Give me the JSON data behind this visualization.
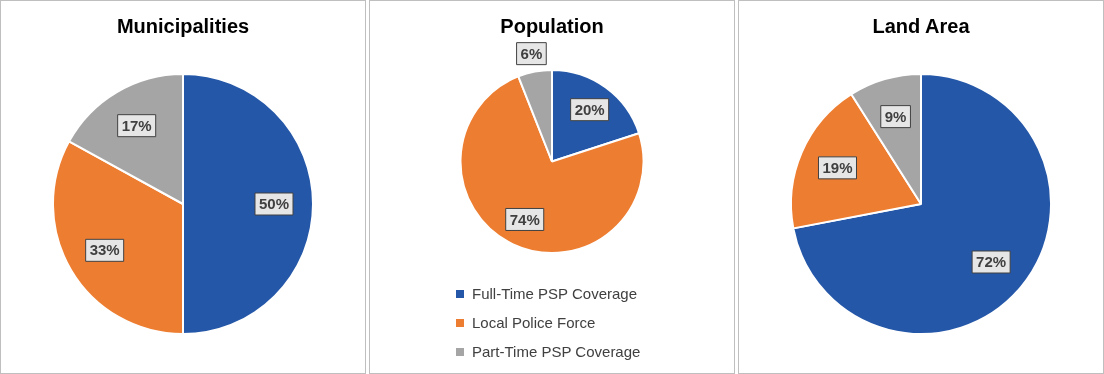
{
  "chart_data": [
    {
      "type": "pie",
      "title": "Municipalities",
      "categories": [
        null,
        null,
        null
      ],
      "values": [
        50,
        33,
        17
      ],
      "colors": [
        "#2457a8",
        "#ed7d31",
        "#a5a5a5"
      ],
      "value_labels": [
        "50%",
        "33%",
        "17%"
      ],
      "legend": false
    },
    {
      "type": "pie",
      "title": "Population",
      "categories": [
        "Full-Time PSP Coverage",
        "Local Police Force",
        "Part-Time PSP Coverage"
      ],
      "values": [
        20,
        74,
        6
      ],
      "colors": [
        "#2457a8",
        "#ed7d31",
        "#a5a5a5"
      ],
      "value_labels": [
        "20%",
        "74%",
        "6%"
      ],
      "legend": "bottom"
    },
    {
      "type": "pie",
      "title": "Land Area",
      "categories": [
        null,
        null,
        null
      ],
      "values": [
        72,
        19,
        9
      ],
      "colors": [
        "#2457a8",
        "#ed7d31",
        "#a5a5a5"
      ],
      "value_labels": [
        "72%",
        "19%",
        "9%"
      ],
      "legend": false
    }
  ]
}
